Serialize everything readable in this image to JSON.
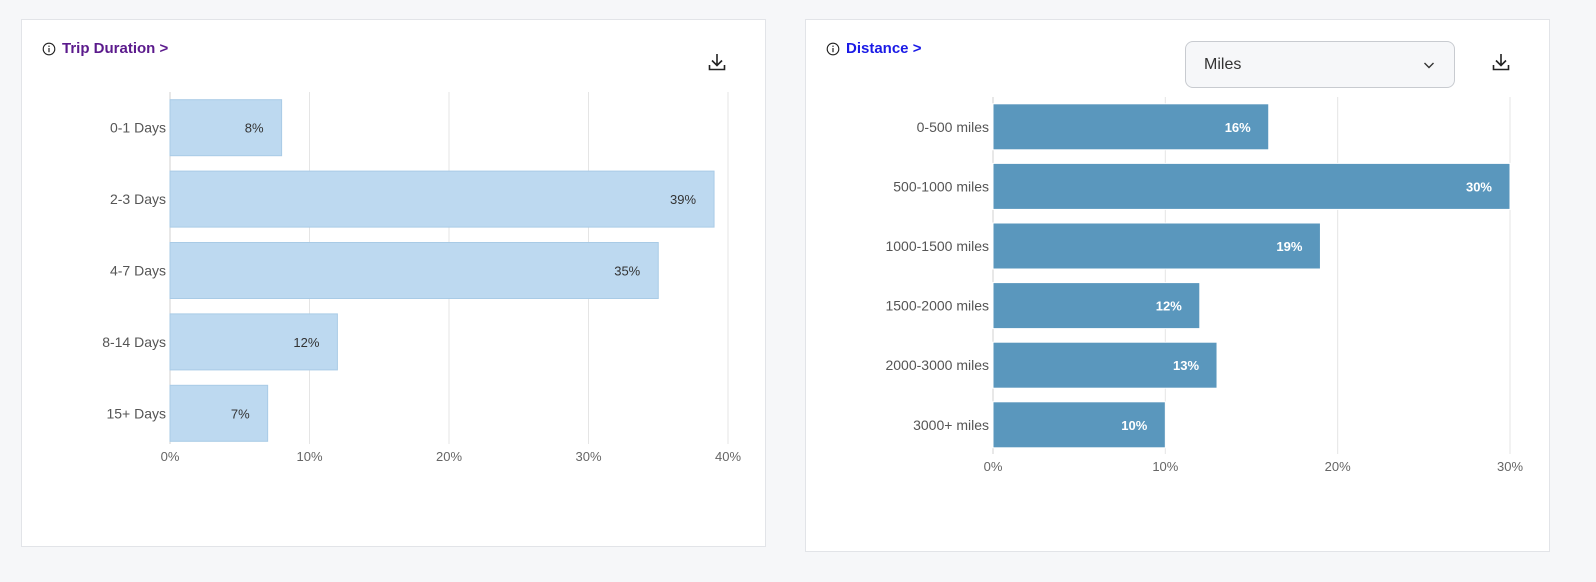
{
  "colors": {
    "duration_bar": "#bdd9f0",
    "duration_bar_border": "#a9cbe6",
    "distance_bar": "#5a97bd",
    "title_duration": "#5b1a8c",
    "title_distance": "#1a1ae6",
    "grid": "#e5e5e5"
  },
  "duration_card": {
    "title": "Trip Duration >",
    "download_icon": "download-icon",
    "info_icon": "info-icon"
  },
  "distance_card": {
    "title": "Distance >",
    "unit_select": {
      "selected": "Miles"
    },
    "download_icon": "download-icon",
    "info_icon": "info-icon"
  },
  "chart_data": [
    {
      "type": "bar",
      "orientation": "horizontal",
      "title": "Trip Duration >",
      "categories": [
        "0-1 Days",
        "2-3 Days",
        "4-7 Days",
        "8-14 Days",
        "15+ Days"
      ],
      "values": [
        8,
        39,
        35,
        12,
        7
      ],
      "data_labels": [
        "8%",
        "39%",
        "35%",
        "12%",
        "7%"
      ],
      "xlim": [
        0,
        40
      ],
      "xticks": [
        0,
        10,
        20,
        30,
        40
      ],
      "xtick_labels": [
        "0%",
        "10%",
        "20%",
        "30%",
        "40%"
      ],
      "grid": true
    },
    {
      "type": "bar",
      "orientation": "horizontal",
      "title": "Distance >",
      "categories": [
        "0-500 miles",
        "500-1000 miles",
        "1000-1500 miles",
        "1500-2000 miles",
        "2000-3000 miles",
        "3000+ miles"
      ],
      "values": [
        16,
        30,
        19,
        12,
        13,
        10
      ],
      "data_labels": [
        "16%",
        "30%",
        "19%",
        "12%",
        "13%",
        "10%"
      ],
      "xlim": [
        0,
        30
      ],
      "xticks": [
        0,
        10,
        20,
        30
      ],
      "xtick_labels": [
        "0%",
        "10%",
        "20%",
        "30%"
      ],
      "grid": true
    }
  ]
}
